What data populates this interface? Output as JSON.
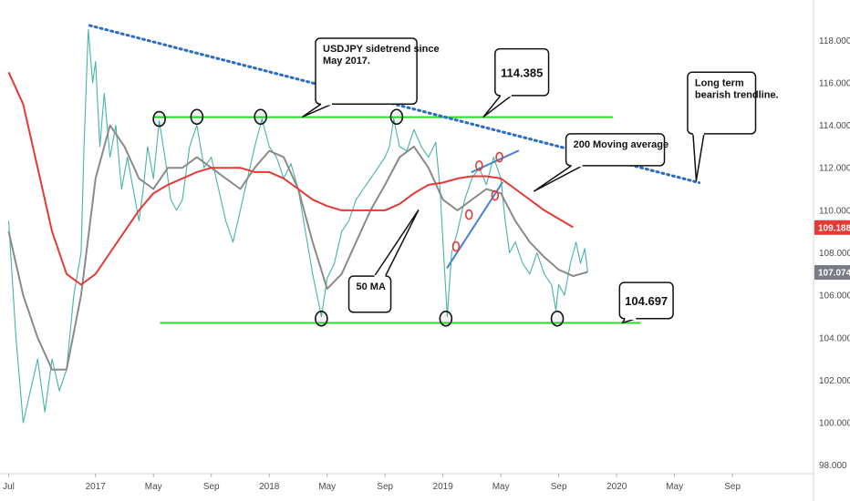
{
  "chart_data": {
    "type": "line",
    "symbol": "USDJPY",
    "x_ticks": [
      "Jul",
      "2017",
      "May",
      "Sep",
      "2018",
      "May",
      "Sep",
      "2019",
      "May",
      "Sep",
      "2020",
      "May",
      "Sep"
    ],
    "x_tick_months": [
      0,
      6,
      10,
      14,
      18,
      22,
      26,
      30,
      34,
      38,
      42,
      46,
      50
    ],
    "y_ticks": [
      "98.000",
      "100.000",
      "102.000",
      "104.000",
      "106.000",
      "108.000",
      "110.000",
      "112.000",
      "114.000",
      "116.000",
      "118.000"
    ],
    "ylim": [
      97.6,
      119.9
    ],
    "xlim": [
      -0.6,
      55.6
    ],
    "grid": false,
    "price_badges": [
      {
        "label": "109.188",
        "value": 109.188,
        "color": "#e53935"
      },
      {
        "label": "107.074",
        "value": 107.074,
        "color": "#787b86"
      }
    ],
    "series": [
      {
        "name": "",
        "role": "price",
        "color": "#26a69a",
        "points": [
          [
            0,
            109.5
          ],
          [
            0.5,
            104
          ],
          [
            1,
            100
          ],
          [
            1.5,
            101.5
          ],
          [
            2,
            103
          ],
          [
            2.5,
            100.5
          ],
          [
            3,
            103
          ],
          [
            3.5,
            101.5
          ],
          [
            4,
            102.5
          ],
          [
            4.5,
            106
          ],
          [
            5,
            108
          ],
          [
            5.2,
            113
          ],
          [
            5.5,
            118.5
          ],
          [
            5.8,
            116
          ],
          [
            6,
            117
          ],
          [
            6.3,
            113
          ],
          [
            6.6,
            115.5
          ],
          [
            7,
            112.5
          ],
          [
            7.4,
            114
          ],
          [
            7.8,
            111
          ],
          [
            8.2,
            112.5
          ],
          [
            8.6,
            111
          ],
          [
            9,
            109.5
          ],
          [
            9.3,
            111
          ],
          [
            9.6,
            113
          ],
          [
            10,
            111.5
          ],
          [
            10.4,
            114.2
          ],
          [
            10.8,
            112.5
          ],
          [
            11.2,
            110.5
          ],
          [
            11.6,
            110
          ],
          [
            12,
            110.5
          ],
          [
            12.5,
            113
          ],
          [
            13,
            114
          ],
          [
            13.5,
            112
          ],
          [
            14,
            112.5
          ],
          [
            14.5,
            111
          ],
          [
            15,
            109.5
          ],
          [
            15.5,
            108.5
          ],
          [
            16,
            110
          ],
          [
            16.5,
            111.5
          ],
          [
            17,
            113
          ],
          [
            17.5,
            114.3
          ],
          [
            18,
            113
          ],
          [
            18.5,
            112.5
          ],
          [
            19,
            111.5
          ],
          [
            19.5,
            112.2
          ],
          [
            20,
            111
          ],
          [
            20.5,
            109
          ],
          [
            21,
            107
          ],
          [
            21.3,
            106
          ],
          [
            21.6,
            105
          ],
          [
            22,
            106.8
          ],
          [
            22.5,
            107.5
          ],
          [
            23,
            109
          ],
          [
            23.5,
            109.5
          ],
          [
            24,
            110.5
          ],
          [
            24.5,
            111
          ],
          [
            25,
            111.5
          ],
          [
            25.5,
            112
          ],
          [
            26,
            112.5
          ],
          [
            26.3,
            113
          ],
          [
            26.6,
            114.3
          ],
          [
            27,
            113
          ],
          [
            27.5,
            112.8
          ],
          [
            28,
            113.8
          ],
          [
            28.5,
            113
          ],
          [
            29,
            112.5
          ],
          [
            29.5,
            113.2
          ],
          [
            29.8,
            111
          ],
          [
            30,
            108.5
          ],
          [
            30.3,
            105
          ],
          [
            30.6,
            108
          ],
          [
            31,
            109
          ],
          [
            31.5,
            110.5
          ],
          [
            32,
            111.5
          ],
          [
            32.5,
            112
          ],
          [
            33,
            111.2
          ],
          [
            33.5,
            112.5
          ],
          [
            34,
            111.5
          ],
          [
            34.3,
            109.5
          ],
          [
            34.6,
            108
          ],
          [
            35,
            108.5
          ],
          [
            35.5,
            107.5
          ],
          [
            36,
            107
          ],
          [
            36.5,
            108
          ],
          [
            37,
            107
          ],
          [
            37.5,
            106.5
          ],
          [
            37.8,
            105.3
          ],
          [
            38,
            106.5
          ],
          [
            38.4,
            106
          ],
          [
            38.8,
            107.5
          ],
          [
            39.2,
            108.5
          ],
          [
            39.5,
            107.5
          ],
          [
            39.8,
            108.2
          ],
          [
            40,
            107.1
          ]
        ]
      },
      {
        "name": "",
        "role": "50 MA",
        "color": "#8a8a8a",
        "points": [
          [
            0,
            109
          ],
          [
            1,
            106
          ],
          [
            2,
            104
          ],
          [
            3,
            102.5
          ],
          [
            4,
            102.5
          ],
          [
            5,
            106
          ],
          [
            6,
            111.5
          ],
          [
            7,
            114
          ],
          [
            8,
            113
          ],
          [
            9,
            111.5
          ],
          [
            10,
            111
          ],
          [
            11,
            112
          ],
          [
            12,
            112
          ],
          [
            13,
            112.5
          ],
          [
            14,
            112
          ],
          [
            15,
            111.5
          ],
          [
            16,
            111
          ],
          [
            17,
            112
          ],
          [
            18,
            112.8
          ],
          [
            19,
            112.5
          ],
          [
            20,
            111
          ],
          [
            21,
            108.5
          ],
          [
            22,
            106.3
          ],
          [
            23,
            107
          ],
          [
            24,
            108.5
          ],
          [
            25,
            110
          ],
          [
            26,
            111.2
          ],
          [
            27,
            112.5
          ],
          [
            28,
            113
          ],
          [
            29,
            112
          ],
          [
            30,
            110.5
          ],
          [
            31,
            110
          ],
          [
            32,
            110.5
          ],
          [
            33,
            111
          ],
          [
            34,
            110.8
          ],
          [
            35,
            109.5
          ],
          [
            36,
            108.5
          ],
          [
            37,
            107.8
          ],
          [
            38,
            107.2
          ],
          [
            39,
            106.9
          ],
          [
            40,
            107.1
          ]
        ]
      },
      {
        "name": "",
        "role": "200 MA",
        "color": "#e53935",
        "points": [
          [
            0,
            116.5
          ],
          [
            1,
            115
          ],
          [
            2,
            112
          ],
          [
            3,
            109
          ],
          [
            4,
            107
          ],
          [
            5,
            106.5
          ],
          [
            6,
            107
          ],
          [
            7,
            108
          ],
          [
            8,
            109
          ],
          [
            9,
            110
          ],
          [
            10,
            110.8
          ],
          [
            11,
            111.2
          ],
          [
            12,
            111.5
          ],
          [
            13,
            111.8
          ],
          [
            14,
            112
          ],
          [
            15,
            112
          ],
          [
            16,
            112
          ],
          [
            17,
            111.8
          ],
          [
            18,
            111.8
          ],
          [
            19,
            111.5
          ],
          [
            20,
            111
          ],
          [
            21,
            110.5
          ],
          [
            22,
            110.2
          ],
          [
            23,
            110
          ],
          [
            24,
            110
          ],
          [
            25,
            110
          ],
          [
            26,
            110
          ],
          [
            27,
            110.3
          ],
          [
            28,
            110.8
          ],
          [
            29,
            111.2
          ],
          [
            30,
            111.3
          ],
          [
            31,
            111.5
          ],
          [
            32,
            111.6
          ],
          [
            33,
            111.6
          ],
          [
            34,
            111.5
          ],
          [
            35,
            111
          ],
          [
            36,
            110.5
          ],
          [
            37,
            110
          ],
          [
            38,
            109.6
          ],
          [
            39,
            109.2
          ]
        ]
      }
    ],
    "lines": [
      {
        "name": "resistance",
        "color": "#22dd22",
        "x1": 10.1,
        "y1": 114.385,
        "x2": 41.7,
        "y2": 114.385
      },
      {
        "name": "support",
        "color": "#22dd22",
        "x1": 10.5,
        "y1": 104.697,
        "x2": 43.6,
        "y2": 104.697
      },
      {
        "name": "bearish-trendline",
        "color": "#2c6cc4",
        "x1": 5.6,
        "y1": 118.7,
        "x2": 47.7,
        "y2": 111.3
      },
      {
        "name": "channel-upper",
        "color": "#4a7fd4",
        "x1": 32,
        "y1": 111.8,
        "x2": 35.2,
        "y2": 112.8
      },
      {
        "name": "channel-lower",
        "color": "#4a7fd4",
        "x1": 30.3,
        "y1": 107.3,
        "x2": 34.1,
        "y2": 111.3
      }
    ],
    "markers": [
      {
        "name": "touch-1",
        "x": 10.4,
        "y": 114.3,
        "color": "#111111"
      },
      {
        "name": "touch-2",
        "x": 13.0,
        "y": 114.4,
        "color": "#111111"
      },
      {
        "name": "touch-3",
        "x": 17.4,
        "y": 114.4,
        "color": "#111111"
      },
      {
        "name": "touch-4",
        "x": 26.8,
        "y": 114.4,
        "color": "#111111"
      },
      {
        "name": "low-1",
        "x": 21.6,
        "y": 104.9,
        "color": "#111111"
      },
      {
        "name": "low-2",
        "x": 30.2,
        "y": 104.9,
        "color": "#111111"
      },
      {
        "name": "low-3",
        "x": 37.9,
        "y": 104.9,
        "color": "#111111"
      },
      {
        "name": "red-1",
        "x": 30.9,
        "y": 108.3,
        "color": "#e53935"
      },
      {
        "name": "red-2",
        "x": 31.8,
        "y": 109.8,
        "color": "#e53935"
      },
      {
        "name": "red-3",
        "x": 32.5,
        "y": 112.1,
        "color": "#e53935"
      },
      {
        "name": "red-4",
        "x": 33.6,
        "y": 110.7,
        "color": "#e53935"
      },
      {
        "name": "red-5",
        "x": 33.9,
        "y": 112.5,
        "color": "#e53935"
      }
    ],
    "annotations": [
      {
        "name": "callout-sidetrend",
        "lines": [
          "USDJPY sidetrend since",
          "May 2017."
        ],
        "x": 21.2,
        "y": 118.1,
        "x2": 28.2,
        "y2": 115.0,
        "pointer_x": 20.3,
        "pointer_y": 114.4,
        "style": "normal"
      },
      {
        "name": "callout-114",
        "lines": [
          "114.385"
        ],
        "x": 33.6,
        "y": 117.6,
        "x2": 37.3,
        "y2": 115.4,
        "pointer_x": 32.8,
        "pointer_y": 114.4,
        "style": "big"
      },
      {
        "name": "callout-long-term",
        "lines": [
          "Long term",
          "bearish trendline."
        ],
        "x": 46.9,
        "y": 116.5,
        "x2": 51.6,
        "y2": 113.6,
        "pointer_x": 47.5,
        "pointer_y": 111.4,
        "style": "normal"
      },
      {
        "name": "callout-200ma",
        "lines": [
          "200 Moving average"
        ],
        "x": 38.5,
        "y": 113.6,
        "x2": 45.3,
        "y2": 112.1,
        "pointer_x": 36.3,
        "pointer_y": 110.9,
        "style": "normal"
      },
      {
        "name": "callout-50ma",
        "lines": [
          "50 MA"
        ],
        "x": 23.5,
        "y": 106.9,
        "x2": 26.4,
        "y2": 105.2,
        "pointer_x": 28.3,
        "pointer_y": 110.0,
        "style": "normal"
      },
      {
        "name": "callout-104",
        "lines": [
          "104.697"
        ],
        "x": 42.2,
        "y": 106.6,
        "x2": 45.9,
        "y2": 104.9,
        "pointer_x": 42.4,
        "pointer_y": 104.7,
        "style": "big"
      }
    ]
  }
}
